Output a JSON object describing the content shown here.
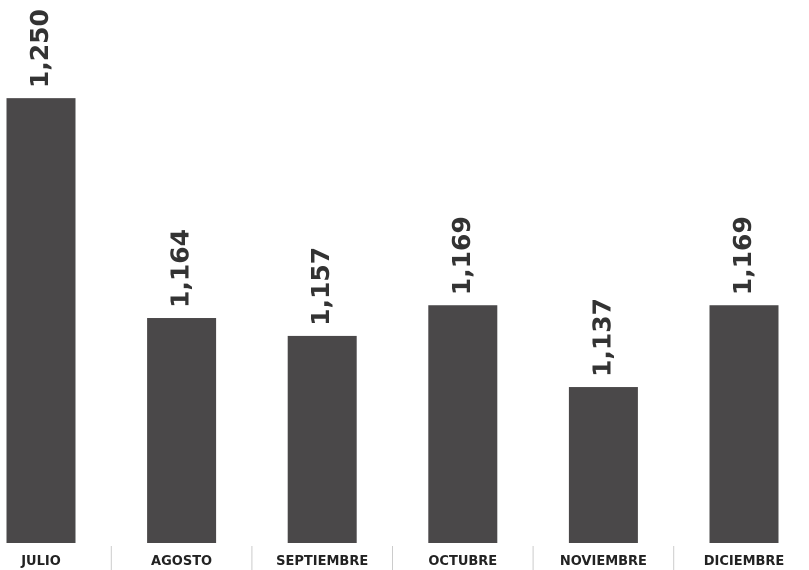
{
  "chart_data": {
    "type": "bar",
    "categories": [
      "JULIO",
      "AGOSTO",
      "SEPTIEMBRE",
      "OCTUBRE",
      "NOVIEMBRE",
      "DICIEMBRE"
    ],
    "values": [
      1250,
      1164,
      1157,
      1169,
      1137,
      1169
    ],
    "value_labels": [
      "1,250",
      "1,164",
      "1,157",
      "1,169",
      "1,137",
      "1,169"
    ],
    "color": "#4a4849",
    "ylim": [
      1076,
      1288
    ]
  }
}
